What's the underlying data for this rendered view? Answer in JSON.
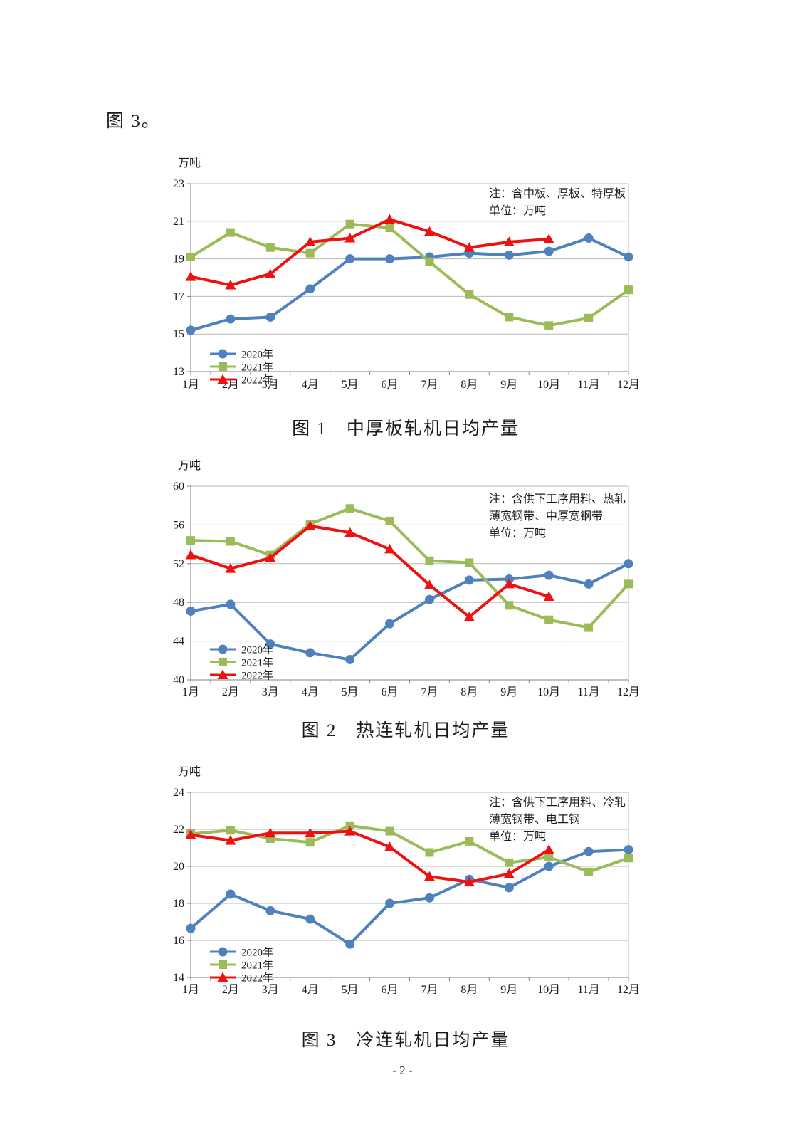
{
  "page": {
    "intro_text": "图 3。",
    "page_number": "- 2 -"
  },
  "colors": {
    "series_2020": "#4f81bd",
    "series_2021": "#9bbb59",
    "series_2022": "#ee1111",
    "gridline": "#b9b9b9",
    "axis": "#808080",
    "text": "#1a1a1a"
  },
  "chart_data": [
    {
      "type": "line",
      "title": "图 1　中厚板轧机日均产量",
      "unit_label": "万吨",
      "note_lines": [
        "注：含中板、厚板、特厚板",
        "单位：万吨"
      ],
      "categories": [
        "1月",
        "2月",
        "3月",
        "4月",
        "5月",
        "6月",
        "7月",
        "8月",
        "9月",
        "10月",
        "11月",
        "12月"
      ],
      "ylim": [
        13,
        23
      ],
      "yticks": [
        23,
        21,
        19,
        17,
        15,
        13
      ],
      "grid": true,
      "legend_position": "bottom-left",
      "series": [
        {
          "name": "2020年",
          "marker": "circle",
          "color": "#4f81bd",
          "values": [
            15.2,
            15.8,
            15.9,
            17.4,
            19.0,
            19.0,
            19.1,
            19.3,
            19.2,
            19.4,
            20.1,
            19.1
          ]
        },
        {
          "name": "2021年",
          "marker": "square",
          "color": "#9bbb59",
          "values": [
            19.1,
            20.4,
            19.6,
            19.3,
            20.85,
            20.65,
            18.85,
            17.1,
            15.9,
            15.45,
            15.85,
            17.35
          ]
        },
        {
          "name": "2022年",
          "marker": "triangle",
          "color": "#ee1111",
          "values": [
            18.05,
            17.6,
            18.2,
            19.9,
            20.1,
            21.1,
            20.45,
            19.6,
            19.9,
            20.05,
            null,
            null
          ]
        }
      ]
    },
    {
      "type": "line",
      "title": "图 2　热连轧机日均产量",
      "unit_label": "万吨",
      "note_lines": [
        "注：含供下工序用料、热轧",
        "薄宽钢带、中厚宽钢带",
        "单位：万吨"
      ],
      "categories": [
        "1月",
        "2月",
        "3月",
        "4月",
        "5月",
        "6月",
        "7月",
        "8月",
        "9月",
        "10月",
        "11月",
        "12月"
      ],
      "ylim": [
        40,
        60
      ],
      "yticks": [
        60,
        56,
        52,
        48,
        44,
        40
      ],
      "grid": true,
      "legend_position": "bottom-left",
      "series": [
        {
          "name": "2020年",
          "marker": "circle",
          "color": "#4f81bd",
          "values": [
            47.1,
            47.8,
            43.7,
            42.8,
            42.1,
            45.8,
            48.3,
            50.3,
            50.4,
            50.8,
            49.9,
            52.0
          ]
        },
        {
          "name": "2021年",
          "marker": "square",
          "color": "#9bbb59",
          "values": [
            54.4,
            54.3,
            52.9,
            56.1,
            57.7,
            56.4,
            52.3,
            52.1,
            47.7,
            46.2,
            45.4,
            49.9
          ]
        },
        {
          "name": "2022年",
          "marker": "triangle",
          "color": "#ee1111",
          "values": [
            52.9,
            51.5,
            52.6,
            55.9,
            55.2,
            53.5,
            49.8,
            46.5,
            49.9,
            48.6,
            null,
            null
          ]
        }
      ]
    },
    {
      "type": "line",
      "title": "图 3　冷连轧机日均产量",
      "unit_label": "万吨",
      "note_lines": [
        "注：含供下工序用料、冷轧",
        "薄宽钢带、电工钢",
        "单位：万吨"
      ],
      "categories": [
        "1月",
        "2月",
        "3月",
        "4月",
        "5月",
        "6月",
        "7月",
        "8月",
        "9月",
        "10月",
        "11月",
        "12月"
      ],
      "ylim": [
        14,
        24
      ],
      "yticks": [
        24,
        22,
        20,
        18,
        16,
        14
      ],
      "grid": true,
      "legend_position": "bottom-left",
      "series": [
        {
          "name": "2020年",
          "marker": "circle",
          "color": "#4f81bd",
          "values": [
            16.65,
            18.5,
            17.6,
            17.15,
            15.8,
            18.0,
            18.3,
            19.3,
            18.85,
            20.0,
            20.8,
            20.9
          ]
        },
        {
          "name": "2021年",
          "marker": "square",
          "color": "#9bbb59",
          "values": [
            21.75,
            21.95,
            21.5,
            21.3,
            22.2,
            21.9,
            20.75,
            21.35,
            20.2,
            20.5,
            19.7,
            20.45
          ]
        },
        {
          "name": "2022年",
          "marker": "triangle",
          "color": "#ee1111",
          "values": [
            21.7,
            21.4,
            21.8,
            21.8,
            21.9,
            21.05,
            19.45,
            19.15,
            19.6,
            20.9,
            null,
            null
          ]
        }
      ]
    }
  ]
}
